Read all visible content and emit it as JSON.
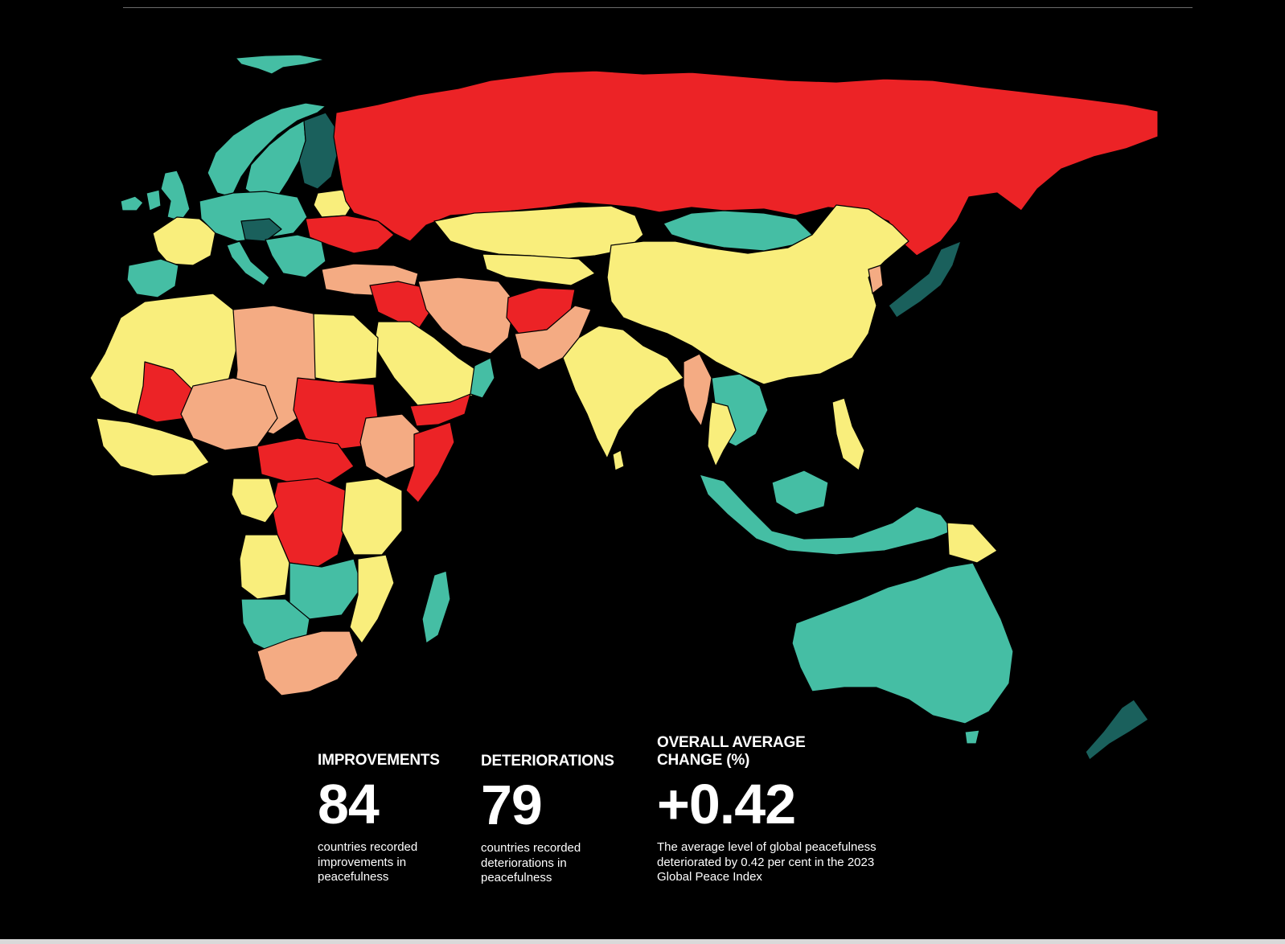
{
  "colors": {
    "background": "#000000",
    "red": "#ec2326",
    "salmon": "#f4ab83",
    "yellow": "#f9ee7c",
    "teal": "#45bea4",
    "dark_teal": "#1a605c",
    "border": "#000000"
  },
  "stats": {
    "improvements": {
      "title": "IMPROVEMENTS",
      "value": "84",
      "description": "countries recorded improvements in peacefulness"
    },
    "deteriorations": {
      "title": "DETERIORATIONS",
      "value": "79",
      "description": "countries recorded deteriorations in peacefulness"
    },
    "overall": {
      "title": "OVERALL AVERAGE CHANGE (%)",
      "value": "+0.42",
      "description": "The average level of global peacefulness deteriorated by 0.42 per cent in the 2023 Global Peace Index"
    }
  }
}
